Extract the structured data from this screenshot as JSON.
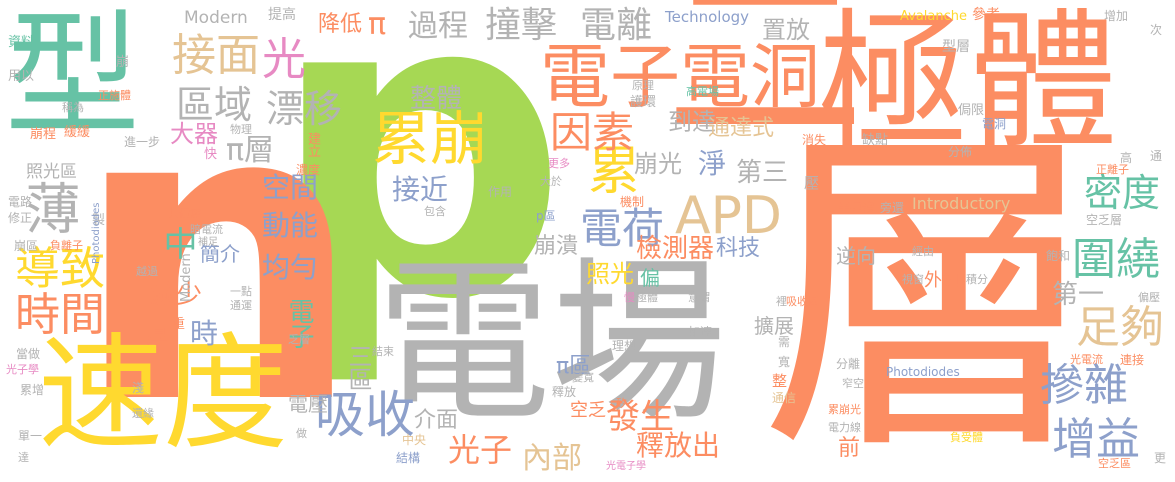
{
  "palette": {
    "green": "#66c2a5",
    "orange": "#fc8d62",
    "blue": "#8da0cb",
    "pink": "#e78ac3",
    "lime": "#a6d854",
    "yellow": "#ffd92f",
    "tan": "#e5c494",
    "gray": "#b3b3b3"
  },
  "words": {
    "p": {
      "text": "p",
      "color": "#a6d854"
    },
    "n": {
      "text": "n",
      "color": "#fc8d62"
    },
    "ceng_big": {
      "text": "層",
      "color": "#fc8d62"
    },
    "dianchang": {
      "text": "電場",
      "color": "#b3b3b3"
    },
    "jiti": {
      "text": "極體",
      "color": "#fc8d62"
    },
    "xing": {
      "text": "型",
      "color": "#66c2a5"
    },
    "sudu": {
      "text": "速度",
      "color": "#ffd92f"
    },
    "er": {
      "text": "二",
      "color": "#fc8d62"
    },
    "dianzi_top": {
      "text": "電子",
      "color": "#fc8d62"
    },
    "diandong": {
      "text": "電洞",
      "color": "#fc8d62"
    },
    "apd": {
      "text": "APD",
      "color": "#e5c494"
    },
    "leibeng": {
      "text": "累崩",
      "color": "#ffd92f"
    },
    "lei": {
      "text": "累",
      "color": "#ffd92f"
    },
    "yinsu": {
      "text": "因素",
      "color": "#fc8d62"
    },
    "dianhe": {
      "text": "電荷",
      "color": "#8da0cb"
    },
    "jiemian": {
      "text": "接面",
      "color": "#e5c494"
    },
    "guang_top": {
      "text": "光",
      "color": "#e78ac3"
    },
    "quyu": {
      "text": "區域",
      "color": "#b3b3b3"
    },
    "piaoyi": {
      "text": "漂移",
      "color": "#b3b3b3"
    },
    "bao": {
      "text": "薄",
      "color": "#b3b3b3"
    },
    "daozhi": {
      "text": "導致",
      "color": "#ffd92f"
    },
    "shijian": {
      "text": "時間",
      "color": "#fc8d62"
    },
    "xishou": {
      "text": "吸收",
      "color": "#8da0cb"
    },
    "chanza": {
      "text": "摻雜",
      "color": "#8da0cb"
    },
    "weirao": {
      "text": "圍繞",
      "color": "#66c2a5"
    },
    "midu": {
      "text": "密度",
      "color": "#66c2a5"
    },
    "zugou": {
      "text": "足夠",
      "color": "#e5c494"
    },
    "zengyi": {
      "text": "增益",
      "color": "#8da0cb"
    },
    "zhuangji": {
      "text": "撞擊",
      "color": "#b3b3b3"
    },
    "dianli": {
      "text": "電離",
      "color": "#b3b3b3"
    },
    "guocheng": {
      "text": "過程",
      "color": "#b3b3b3"
    },
    "jiangdi": {
      "text": "降低",
      "color": "#fc8d62"
    },
    "pi_sym": {
      "text": "π",
      "color": "#fc8d62"
    },
    "jiancheqi": {
      "text": "檢測器",
      "color": "#fc8d62"
    },
    "keji": {
      "text": "科技",
      "color": "#8da0cb"
    },
    "shifangchu": {
      "text": "釋放出",
      "color": "#fc8d62"
    },
    "fasheng": {
      "text": "發生",
      "color": "#fc8d62"
    },
    "neibu": {
      "text": "內部",
      "color": "#e5c494"
    },
    "guangzi": {
      "text": "光子",
      "color": "#fc8d62"
    },
    "jiemian2": {
      "text": "介面",
      "color": "#b3b3b3"
    },
    "zhengti": {
      "text": "整體",
      "color": "#b3b3b3"
    },
    "daoda": {
      "text": "到達",
      "color": "#b3b3b3"
    },
    "tongdashi": {
      "text": "通達式",
      "color": "#e5c494"
    },
    "benguang": {
      "text": "崩光",
      "color": "#b3b3b3"
    },
    "jing": {
      "text": "淨",
      "color": "#8da0cb"
    },
    "disan": {
      "text": "第三",
      "color": "#b3b3b3"
    },
    "zhifang": {
      "text": "置放",
      "color": "#b3b3b3"
    },
    "technology": {
      "text": "Technology",
      "color": "#8da0cb"
    },
    "modern_top": {
      "text": "Modern",
      "color": "#b3b3b3"
    },
    "avalanche": {
      "text": "Avalanche",
      "color": "#ffd92f"
    },
    "cankao": {
      "text": "參考",
      "color": "#fc8d62"
    },
    "tigao": {
      "text": "提高",
      "color": "#b3b3b3"
    },
    "introductory": {
      "text": "Introductory",
      "color": "#e5c494"
    },
    "photodiodes": {
      "text": "Photodiodes",
      "color": "#8da0cb"
    },
    "pi_ceng": {
      "text": "π層",
      "color": "#b3b3b3"
    },
    "daqi": {
      "text": "大器",
      "color": "#e78ac3"
    },
    "kongjian": {
      "text": "空間",
      "color": "#8da0cb"
    },
    "dongneng": {
      "text": "動能",
      "color": "#8da0cb"
    },
    "junyun": {
      "text": "均勻",
      "color": "#8da0cb"
    },
    "jiejin": {
      "text": "接近",
      "color": "#8da0cb"
    },
    "jianshao": {
      "text": "減少",
      "color": "#fc8d62"
    },
    "zhong": {
      "text": "中",
      "color": "#66c2a5"
    },
    "jianjie": {
      "text": "簡介",
      "color": "#8da0cb"
    },
    "hou": {
      "text": "厚",
      "color": "#fc8d62"
    },
    "shi": {
      "text": "時",
      "color": "#8da0cb"
    },
    "dianzi_mid": {
      "text": "電子",
      "color": "#66c2a5"
    },
    "beng_kui": {
      "text": "崩潰",
      "color": "#b3b3b3"
    },
    "zhaoguang": {
      "text": "照光",
      "color": "#ffd92f"
    },
    "pian": {
      "text": "偏",
      "color": "#66c2a5"
    },
    "di_yi": {
      "text": "第一",
      "color": "#b3b3b3"
    },
    "nixiang": {
      "text": "逆向",
      "color": "#b3b3b3"
    },
    "kuozhan": {
      "text": "擴展",
      "color": "#b3b3b3"
    },
    "waijia": {
      "text": "外加",
      "color": "#fc8d62"
    },
    "qian": {
      "text": "前",
      "color": "#fc8d62"
    },
    "pi_qu": {
      "text": "π區",
      "color": "#8da0cb"
    },
    "san_qu": {
      "text": "三區",
      "color": "#b3b3b3"
    },
    "dianya": {
      "text": "電壓",
      "color": "#b3b3b3"
    },
    "zhaoguangqu": {
      "text": "照光區",
      "color": "#b3b3b3"
    },
    "xingceng": {
      "text": "型層",
      "color": "#b3b3b3"
    },
    "shiji": {
      "text": "時",
      "color": "#b3b3b3"
    },
    "ziliao": {
      "text": "資料",
      "color": "#66c2a5"
    },
    "yongyi": {
      "text": "用以",
      "color": "#b3b3b3"
    },
    "beng": {
      "text": "崩",
      "color": "#b3b3b3"
    },
    "zhengshiti": {
      "text": "正施體",
      "color": "#fc8d62"
    },
    "chengwei": {
      "text": "稱為",
      "color": "#b3b3b3"
    },
    "bengcheng": {
      "text": "崩程",
      "color": "#fc8d62"
    },
    "huanhuan": {
      "text": "緩緩",
      "color": "#fc8d62"
    },
    "jinyibu": {
      "text": "進一步",
      "color": "#b3b3b3"
    },
    "wuli": {
      "text": "物理",
      "color": "#b3b3b3"
    },
    "kuai": {
      "text": "快",
      "color": "#e78ac3"
    },
    "jianli": {
      "text": "建立",
      "color": "#fc8d62"
    },
    "nongdu": {
      "text": "濃度",
      "color": "#fc8d62"
    },
    "yuanli": {
      "text": "原理",
      "color": "#b3b3b3"
    },
    "huhuan": {
      "text": "護環",
      "color": "#b3b3b3"
    },
    "gaodianchang": {
      "text": "高電場",
      "color": "#66c2a5"
    },
    "queidian": {
      "text": "缺點",
      "color": "#b3b3b3"
    },
    "xiaoshi": {
      "text": "消失",
      "color": "#fc8d62"
    },
    "ya": {
      "text": "壓",
      "color": "#b3b3b3"
    },
    "jixian": {
      "text": "侷限",
      "color": "#b3b3b3"
    },
    "diandong_small": {
      "text": "電洞",
      "color": "#8da0cb"
    },
    "fenbu": {
      "text": "分佈",
      "color": "#b3b3b3"
    },
    "gao": {
      "text": "高",
      "color": "#b3b3b3"
    },
    "zhenglizi": {
      "text": "正離子",
      "color": "#fc8d62"
    },
    "tong": {
      "text": "通",
      "color": "#b3b3b3"
    },
    "zengjia": {
      "text": "增加",
      "color": "#b3b3b3"
    },
    "ci": {
      "text": "次",
      "color": "#b3b3b3"
    },
    "dianlu": {
      "text": "電路",
      "color": "#b3b3b3"
    },
    "xiuzheng": {
      "text": "修正",
      "color": "#b3b3b3"
    },
    "zhi": {
      "text": "製",
      "color": "#b3b3b3"
    },
    "gongjiajian": {
      "text": "共價鍵",
      "color": "#fc8d62"
    },
    "andianliu": {
      "text": "暗電流",
      "color": "#b3b3b3"
    },
    "buzu": {
      "text": "補足",
      "color": "#b3b3b3"
    },
    "benqu": {
      "text": "崩區",
      "color": "#b3b3b3"
    },
    "fudianzi": {
      "text": "負離子",
      "color": "#fc8d62"
    },
    "yiguo": {
      "text": "越過",
      "color": "#b3b3b3"
    },
    "yidian": {
      "text": "一點",
      "color": "#b3b3b3"
    },
    "tongyun": {
      "text": "通運",
      "color": "#b3b3b3"
    },
    "dangzuo": {
      "text": "當做",
      "color": "#b3b3b3"
    },
    "guangdianzixue": {
      "text": "光子學",
      "color": "#e78ac3"
    },
    "fadazi": {
      "text": "乏層",
      "color": "#b3b3b3"
    },
    "zhong2": {
      "text": "重",
      "color": "#fc8d62"
    },
    "jieshu": {
      "text": "結束",
      "color": "#b3b3b3"
    },
    "geng": {
      "text": "更多",
      "color": "#e78ac3"
    },
    "dayu": {
      "text": "大於",
      "color": "#b3b3b3"
    },
    "zuoyong": {
      "text": "作用",
      "color": "#b3b3b3"
    },
    "baohan": {
      "text": "包含",
      "color": "#b3b3b3"
    },
    "pianji": {
      "text": "偏極",
      "color": "#b3b3b3"
    },
    "jizhi": {
      "text": "機制",
      "color": "#fc8d62"
    },
    "pqu": {
      "text": "p區",
      "color": "#8da0cb"
    },
    "bianhuan": {
      "text": "變寬",
      "color": "#b3b3b3"
    },
    "shifang": {
      "text": "釋放",
      "color": "#b3b3b3"
    },
    "kongfa": {
      "text": "空乏",
      "color": "#fc8d62"
    },
    "gui": {
      "text": "矽",
      "color": "#fc8d62"
    },
    "lixiang": {
      "text": "理想",
      "color": "#b3b3b3"
    },
    "jiasu": {
      "text": "加速",
      "color": "#b3b3b3"
    },
    "yiwei": {
      "text": "意謂",
      "color": "#b3b3b3"
    },
    "pangji": {
      "text": "極體",
      "color": "#b3b3b3"
    },
    "man": {
      "text": "慢",
      "color": "#e78ac3"
    },
    "zhongyang": {
      "text": "中央",
      "color": "#e5c494"
    },
    "jiegou": {
      "text": "結構",
      "color": "#8da0cb"
    },
    "guangdianzixue2": {
      "text": "光電子學",
      "color": "#e78ac3"
    },
    "qian2": {
      "text": "淺",
      "color": "#b3b3b3"
    },
    "huanyuan": {
      "text": "還緣",
      "color": "#b3b3b3"
    },
    "leizeng": {
      "text": "累增",
      "color": "#b3b3b3"
    },
    "danyi": {
      "text": "單一",
      "color": "#b3b3b3"
    },
    "da": {
      "text": "達",
      "color": "#b3b3b3"
    },
    "zuo": {
      "text": "做",
      "color": "#b3b3b3"
    },
    "xu": {
      "text": "需",
      "color": "#b3b3b3"
    },
    "kuan": {
      "text": "寬",
      "color": "#b3b3b3"
    },
    "zheng": {
      "text": "整",
      "color": "#fc8d62"
    },
    "tongxin": {
      "text": "通信",
      "color": "#e5c494"
    },
    "leibengguang": {
      "text": "累崩光",
      "color": "#fc8d62"
    },
    "dianlixian": {
      "text": "電力線",
      "color": "#b3b3b3"
    },
    "fenli": {
      "text": "分離",
      "color": "#b3b3b3"
    },
    "zhaikong": {
      "text": "窄空",
      "color": "#b3b3b3"
    },
    "fuceti": {
      "text": "負受體",
      "color": "#ffd92f"
    },
    "guangdianliu": {
      "text": "光電流",
      "color": "#fc8d62"
    },
    "lianjie": {
      "text": "連接",
      "color": "#fc8d62"
    },
    "kongfaqu": {
      "text": "空乏區",
      "color": "#fc8d62"
    },
    "geng2": {
      "text": "更",
      "color": "#b3b3b3"
    },
    "banbaoti": {
      "text": "半導體",
      "color": "#fc8d62"
    },
    "panghuan": {
      "text": "旁還",
      "color": "#b3b3b3"
    },
    "kongfaceng": {
      "text": "空乏層",
      "color": "#b3b3b3"
    },
    "jingyou": {
      "text": "經由",
      "color": "#b3b3b3"
    },
    "baohe": {
      "text": "飽和",
      "color": "#b3b3b3"
    },
    "shichuang": {
      "text": "視窗",
      "color": "#b3b3b3"
    },
    "jifen": {
      "text": "積分",
      "color": "#b3b3b3"
    },
    "pianya": {
      "text": "偏壓",
      "color": "#b3b3b3"
    },
    "xishouqu": {
      "text": "吸收區",
      "color": "#fc8d62"
    },
    "li": {
      "text": "裡",
      "color": "#b3b3b3"
    },
    "modern_left": {
      "text": "Modern",
      "color": "#b3b3b3"
    },
    "photodiodes_left": {
      "text": "Photodiodes",
      "color": "#8da0cb"
    }
  }
}
